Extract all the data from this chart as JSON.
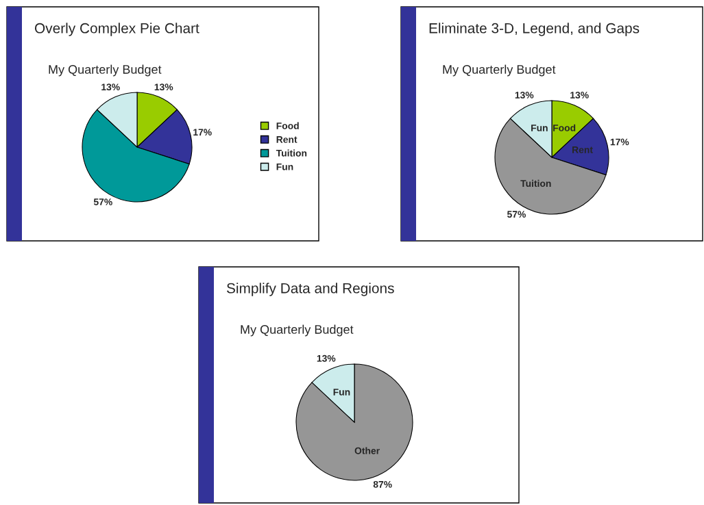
{
  "chart_data": [
    {
      "type": "pie",
      "title": "Overly Complex Pie Chart",
      "subtitle": "My Quarterly Budget",
      "categories": [
        "Food",
        "Rent",
        "Tuition",
        "Fun"
      ],
      "values": [
        13,
        17,
        57,
        13
      ],
      "colors": [
        "#99cc00",
        "#333399",
        "#009999",
        "#ccecec"
      ],
      "value_labels": [
        "13%",
        "17%",
        "57%",
        "13%"
      ],
      "legend": "right"
    },
    {
      "type": "pie",
      "title": "Eliminate 3-D, Legend, and Gaps",
      "subtitle": "My Quarterly Budget",
      "categories": [
        "Food",
        "Rent",
        "Tuition",
        "Fun"
      ],
      "values": [
        13,
        17,
        57,
        13
      ],
      "colors": [
        "#99cc00",
        "#333399",
        "#969696",
        "#ccecec"
      ],
      "value_labels": [
        "13%",
        "17%",
        "57%",
        "13%"
      ]
    },
    {
      "type": "pie",
      "title": "Simplify Data and Regions",
      "subtitle": "My Quarterly Budget",
      "categories": [
        "Other",
        "Fun"
      ],
      "values": [
        87,
        13
      ],
      "colors": [
        "#969696",
        "#ccecec"
      ],
      "value_labels": [
        "87%",
        "13%"
      ]
    }
  ]
}
